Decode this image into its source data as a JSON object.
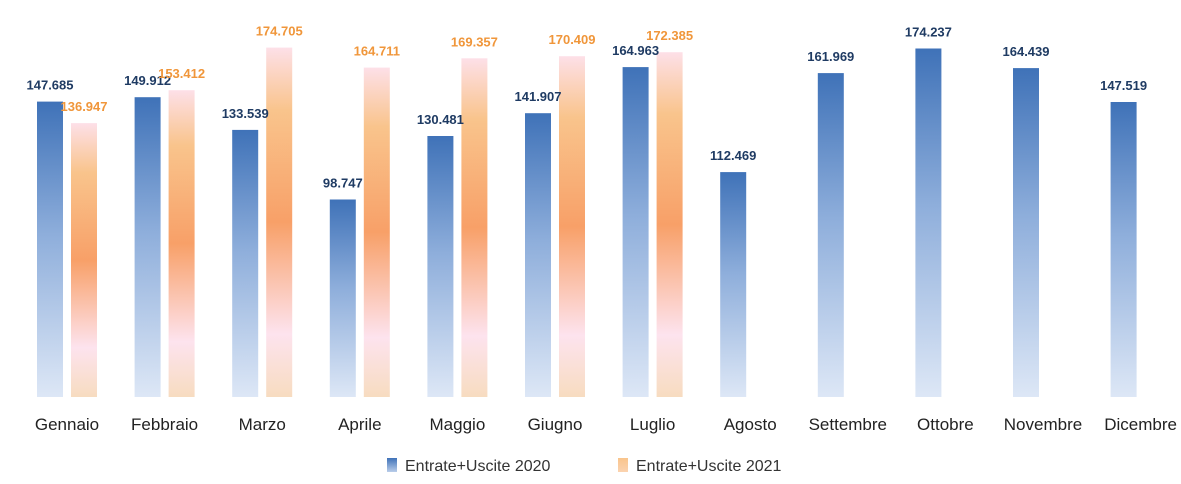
{
  "chart_data": {
    "type": "bar",
    "title": "",
    "xlabel": "",
    "ylabel": "",
    "ylim": [
      0,
      180000
    ],
    "grid": false,
    "legend_position": "bottom",
    "categories": [
      "Gennaio",
      "Febbraio",
      "Marzo",
      "Aprile",
      "Maggio",
      "Giugno",
      "Luglio",
      "Agosto",
      "Settembre",
      "Ottobre",
      "Novembre",
      "Dicembre"
    ],
    "series": [
      {
        "name": "Entrate+Uscite 2020",
        "color": "#4a7dbf",
        "label_color": "#1f3b63",
        "values": [
          147685,
          149912,
          133539,
          98747,
          130481,
          141907,
          164963,
          112469,
          161969,
          174237,
          164439,
          147519
        ],
        "labels": [
          "147.685",
          "149.912",
          "133.539",
          "98.747",
          "130.481",
          "141.907",
          "164.963",
          "112.469",
          "161.969",
          "174.237",
          "164.439",
          "147.519"
        ]
      },
      {
        "name": "Entrate+Uscite 2021",
        "color": "#f7a04f",
        "label_color": "#f0963a",
        "values": [
          136947,
          153412,
          174705,
          164711,
          169357,
          170409,
          172385,
          null,
          null,
          null,
          null,
          null
        ],
        "labels": [
          "136.947",
          "153.412",
          "174.705",
          "164.711",
          "169.357",
          "170.409",
          "172.385",
          null,
          null,
          null,
          null,
          null
        ]
      }
    ]
  }
}
